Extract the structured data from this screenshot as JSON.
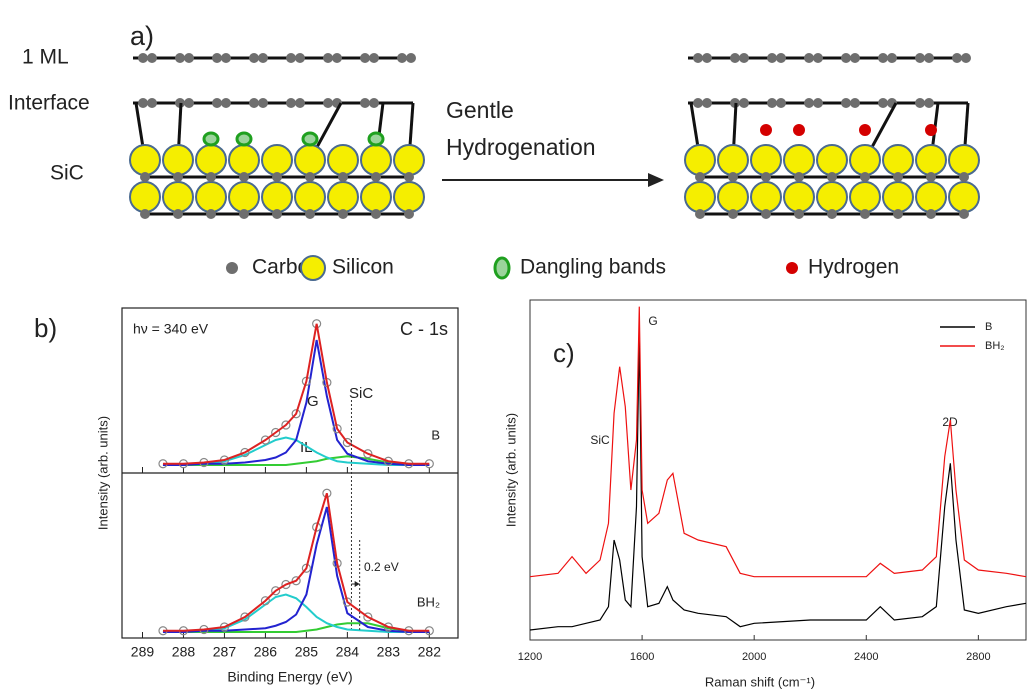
{
  "diagram": {
    "label": "a)",
    "rows": [
      "1 ML",
      "Interface",
      "SiC"
    ],
    "arrow": [
      "Gentle",
      "Hydrogenation"
    ],
    "legend": [
      "Carbon",
      "Silicon",
      "Dangling bands",
      "Hydrogen"
    ]
  },
  "chart_data": [
    {
      "type": "xps",
      "label": "b)",
      "xlabel": "Binding Energy (eV)",
      "ylabel": "Intensity (arb. units)",
      "annotations": [
        "hν = 340 eV",
        "C - 1s",
        "0.2 eV"
      ],
      "xlim": [
        289.5,
        281.3
      ],
      "xticks": [
        289,
        288,
        287,
        286,
        285,
        284,
        283,
        282
      ],
      "ylim": [
        0,
        1.2
      ],
      "shift_lines": [
        283.9,
        283.7
      ],
      "x": [
        288.5,
        288,
        287.5,
        287,
        286.5,
        286,
        285.75,
        285.5,
        285.25,
        285,
        284.75,
        284.5,
        284.25,
        284,
        283.5,
        283,
        282.5,
        282
      ],
      "panels": [
        {
          "label": "B",
          "peak_labels": [
            {
              "text": "G",
              "color": "#2323d0"
            },
            {
              "text": "IL",
              "color": "#b0b0b0"
            },
            {
              "text": "SiC",
              "color": "#33cc33"
            }
          ],
          "series": [
            {
              "color": "#33cc33",
              "values": [
                0,
                0,
                0,
                0,
                0,
                0,
                0,
                0,
                0.01,
                0.02,
                0.03,
                0.05,
                0.06,
                0.07,
                0.05,
                0.02,
                0.01,
                0
              ]
            },
            {
              "color": "#22cccc",
              "values": [
                0,
                0,
                0.01,
                0.03,
                0.08,
                0.16,
                0.2,
                0.22,
                0.2,
                0.15,
                0.1,
                0.06,
                0.03,
                0.02,
                0.01,
                0,
                0,
                0
              ]
            },
            {
              "color": "#2323d0",
              "values": [
                0,
                0,
                0.01,
                0.01,
                0.02,
                0.04,
                0.06,
                0.1,
                0.2,
                0.5,
                1.0,
                0.55,
                0.2,
                0.09,
                0.03,
                0.01,
                0,
                0
              ]
            },
            {
              "color": "#dd2222",
              "markers": true,
              "values": [
                0.01,
                0.01,
                0.02,
                0.04,
                0.1,
                0.2,
                0.26,
                0.32,
                0.41,
                0.67,
                1.13,
                0.66,
                0.29,
                0.18,
                0.09,
                0.03,
                0.01,
                0.01
              ]
            }
          ]
        },
        {
          "label": "BH₂",
          "peak_labels": [],
          "series": [
            {
              "color": "#33cc33",
              "values": [
                0,
                0,
                0,
                0,
                0,
                0,
                0,
                0,
                0,
                0.01,
                0.02,
                0.04,
                0.06,
                0.07,
                0.07,
                0.03,
                0.01,
                0
              ]
            },
            {
              "color": "#22cccc",
              "values": [
                0,
                0,
                0.01,
                0.03,
                0.1,
                0.22,
                0.28,
                0.3,
                0.27,
                0.2,
                0.12,
                0.07,
                0.04,
                0.02,
                0.01,
                0,
                0,
                0
              ]
            },
            {
              "color": "#2323d0",
              "values": [
                0,
                0,
                0.01,
                0.01,
                0.02,
                0.03,
                0.05,
                0.08,
                0.14,
                0.3,
                0.7,
                1.0,
                0.45,
                0.15,
                0.04,
                0.01,
                0,
                0
              ]
            },
            {
              "color": "#dd2222",
              "markers": true,
              "values": [
                0.01,
                0.01,
                0.02,
                0.04,
                0.12,
                0.25,
                0.33,
                0.38,
                0.41,
                0.51,
                0.84,
                1.11,
                0.55,
                0.24,
                0.12,
                0.04,
                0.01,
                0.01
              ]
            }
          ]
        }
      ]
    },
    {
      "type": "line",
      "label": "c)",
      "xlabel": "Raman shift (cm⁻¹)",
      "ylabel": "Intensity (arb. units)",
      "peak_labels": [
        "SiC",
        "G",
        "2D"
      ],
      "xlim": [
        1200,
        2970
      ],
      "xticks": [
        1200,
        1600,
        2000,
        2400,
        2800
      ],
      "ylim": [
        0,
        102
      ],
      "x": [
        1200,
        1300,
        1350,
        1400,
        1450,
        1480,
        1500,
        1520,
        1540,
        1560,
        1580,
        1590,
        1600,
        1620,
        1660,
        1690,
        1710,
        1750,
        1800,
        1900,
        1950,
        2000,
        2200,
        2400,
        2450,
        2500,
        2600,
        2650,
        2680,
        2700,
        2720,
        2750,
        2800,
        2900,
        2970
      ],
      "series": [
        {
          "name": "B",
          "color": "#000000",
          "values": [
            3,
            4,
            4,
            5,
            6,
            10,
            30,
            24,
            12,
            10,
            40,
            92,
            25,
            10,
            11,
            16,
            12,
            9,
            8,
            7,
            4,
            5,
            6,
            6,
            10,
            6,
            7,
            10,
            40,
            53,
            30,
            9,
            8,
            10,
            11
          ]
        },
        {
          "name": "BH₂",
          "color": "#ee1111",
          "values": [
            19,
            20,
            25,
            20,
            24,
            35,
            68,
            82,
            70,
            45,
            60,
            100,
            45,
            35,
            38,
            48,
            50,
            32,
            30,
            28,
            20,
            19,
            19,
            19,
            23,
            20,
            21,
            25,
            55,
            66,
            45,
            24,
            21,
            20,
            19
          ]
        }
      ]
    }
  ]
}
